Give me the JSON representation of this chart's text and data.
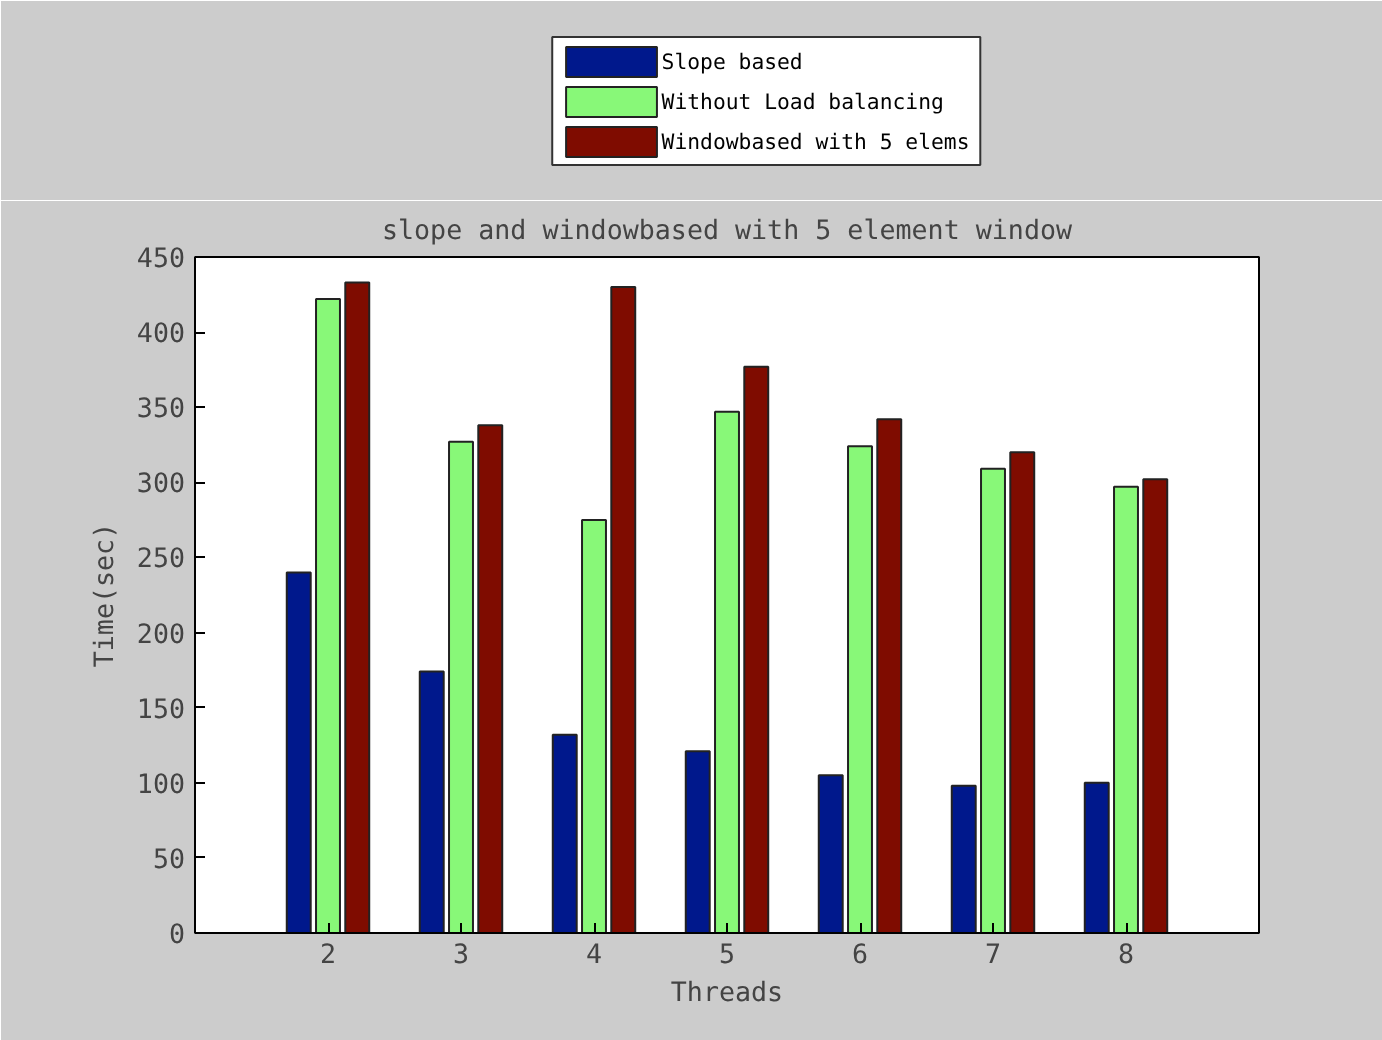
{
  "chart_data": {
    "type": "bar",
    "title": "slope and windowbased with 5 element window",
    "xlabel": "Threads",
    "ylabel": "Time(sec)",
    "x": [
      2,
      3,
      4,
      5,
      6,
      7,
      8
    ],
    "series": [
      {
        "name": "Slope based",
        "color": "#00188c",
        "values": [
          240,
          174,
          132,
          121,
          105,
          98,
          100
        ]
      },
      {
        "name": "Without Load balancing",
        "color": "#88f878",
        "values": [
          422,
          327,
          275,
          347,
          324,
          309,
          297
        ]
      },
      {
        "name": "Windowbased with 5 elems",
        "color": "#7f0c00",
        "values": [
          433,
          338,
          430,
          377,
          342,
          320,
          302
        ]
      }
    ],
    "xlim": [
      1,
      9
    ],
    "xticks": [
      2,
      3,
      4,
      5,
      6,
      7,
      8
    ],
    "ylim": [
      0,
      450
    ],
    "yticks": [
      0,
      50,
      100,
      150,
      200,
      250,
      300,
      350,
      400,
      450
    ],
    "grid": false,
    "legend": "top"
  }
}
